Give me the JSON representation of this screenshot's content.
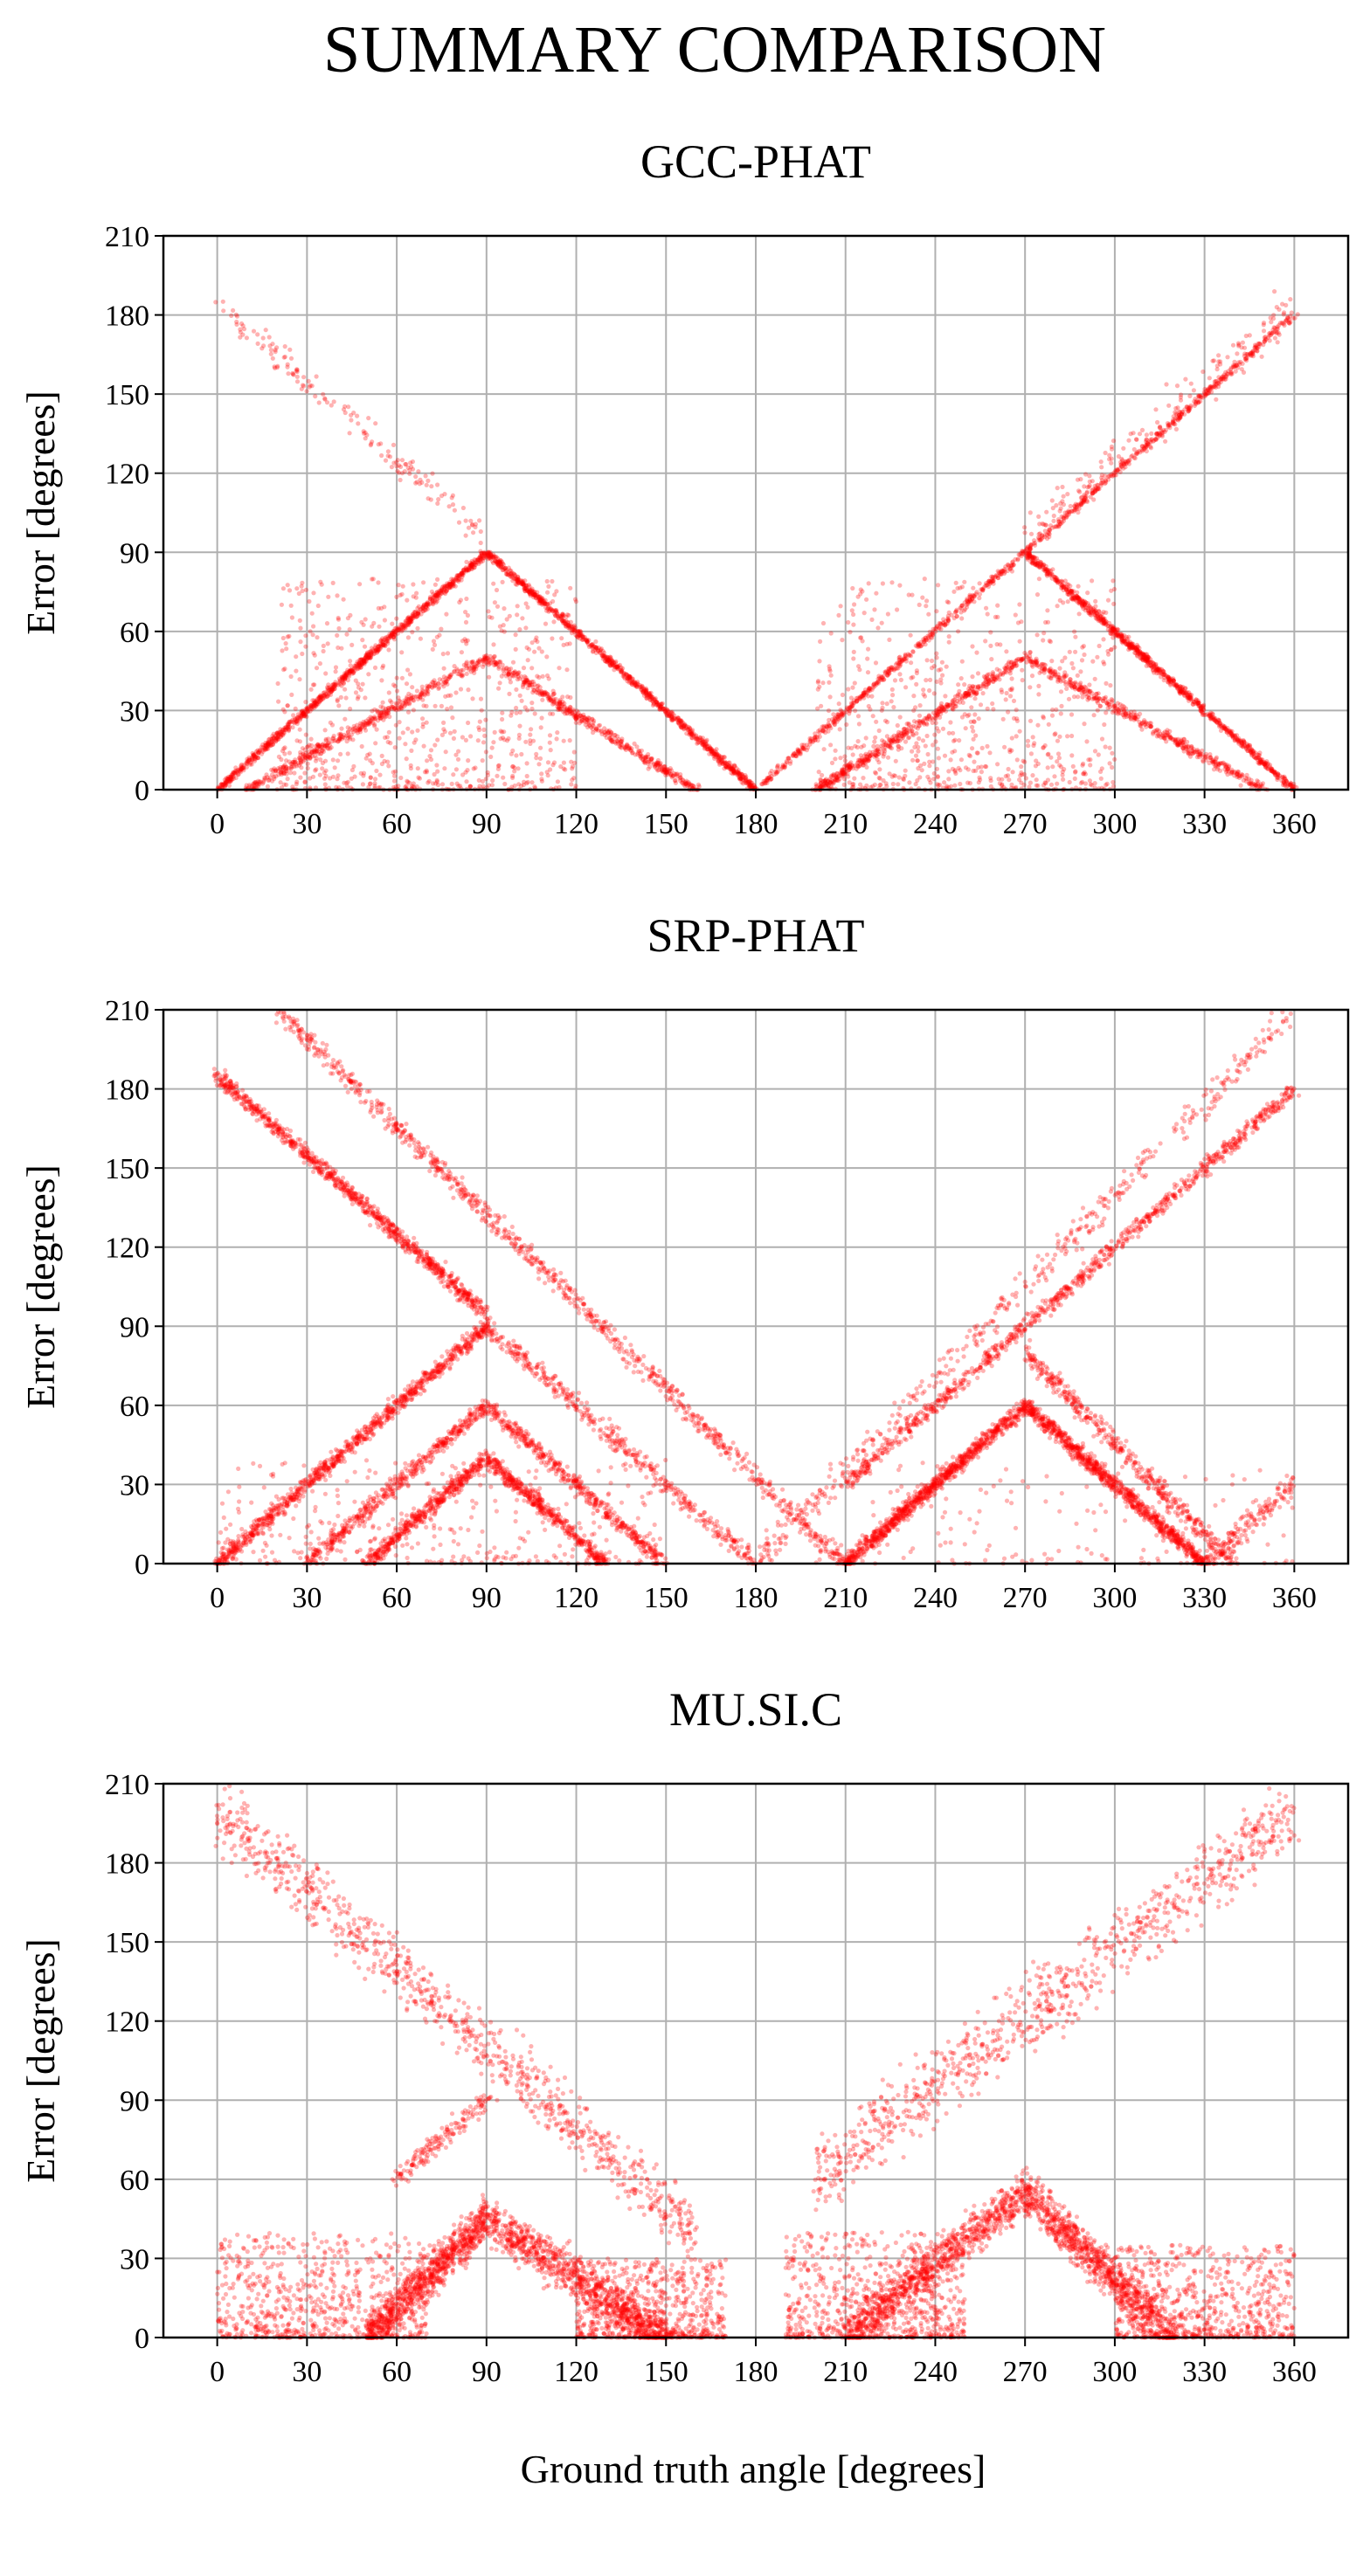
{
  "figure": {
    "title": "SUMMARY COMPARISON",
    "shared_xlabel": "Ground truth angle [degrees]"
  },
  "chart_data": [
    {
      "type": "scatter",
      "title": "GCC-PHAT",
      "xlabel": "",
      "ylabel": "Error [degrees]",
      "xlim": [
        -18,
        378
      ],
      "ylim": [
        0,
        210
      ],
      "xticks": [
        0,
        30,
        60,
        90,
        120,
        150,
        180,
        210,
        240,
        270,
        300,
        330,
        360
      ],
      "yticks": [
        0,
        30,
        60,
        90,
        120,
        150,
        180,
        210
      ],
      "grid": true,
      "marker_color": "#ff0000",
      "segments": [
        {
          "x": [
            0,
            90
          ],
          "y": [
            0,
            90
          ],
          "density": "high",
          "spread": 1
        },
        {
          "x": [
            90,
            180
          ],
          "y": [
            90,
            0
          ],
          "density": "high",
          "spread": 1
        },
        {
          "x": [
            180,
            360
          ],
          "y": [
            0,
            180
          ],
          "density": "high",
          "spread": 1
        },
        {
          "x": [
            270,
            360
          ],
          "y": [
            90,
            0
          ],
          "density": "high",
          "spread": 1
        },
        {
          "x": [
            10,
            90
          ],
          "y": [
            0,
            50
          ],
          "density": "medium",
          "spread": 2
        },
        {
          "x": [
            90,
            160
          ],
          "y": [
            50,
            0
          ],
          "density": "medium",
          "spread": 2
        },
        {
          "x": [
            200,
            270
          ],
          "y": [
            0,
            50
          ],
          "density": "medium",
          "spread": 2
        },
        {
          "x": [
            270,
            350
          ],
          "y": [
            50,
            0
          ],
          "density": "medium",
          "spread": 2
        },
        {
          "x": [
            0,
            90
          ],
          "y": [
            185,
            95
          ],
          "density": "low",
          "spread": 6
        },
        {
          "x": [
            270,
            360
          ],
          "y": [
            95,
            185
          ],
          "density": "low",
          "spread": 8
        }
      ],
      "clusters": [
        {
          "x": [
            20,
            120
          ],
          "y": [
            0,
            80
          ],
          "density": "high"
        },
        {
          "x": [
            200,
            300
          ],
          "y": [
            0,
            80
          ],
          "density": "high"
        }
      ]
    },
    {
      "type": "scatter",
      "title": "SRP-PHAT",
      "xlabel": "",
      "ylabel": "Error [degrees]",
      "xlim": [
        -18,
        378
      ],
      "ylim": [
        0,
        210
      ],
      "xticks": [
        0,
        30,
        60,
        90,
        120,
        150,
        180,
        210,
        240,
        270,
        300,
        330,
        360
      ],
      "yticks": [
        0,
        30,
        60,
        90,
        120,
        150,
        180,
        210
      ],
      "grid": true,
      "marker_color": "#ff0000",
      "segments": [
        {
          "x": [
            0,
            90
          ],
          "y": [
            185,
            95
          ],
          "density": "high",
          "spread": 3
        },
        {
          "x": [
            20,
            210
          ],
          "y": [
            210,
            0
          ],
          "density": "high",
          "spread": 4
        },
        {
          "x": [
            0,
            90
          ],
          "y": [
            0,
            90
          ],
          "density": "high",
          "spread": 3
        },
        {
          "x": [
            90,
            180
          ],
          "y": [
            90,
            0
          ],
          "density": "medium",
          "spread": 4
        },
        {
          "x": [
            210,
            360
          ],
          "y": [
            30,
            180
          ],
          "density": "high",
          "spread": 3
        },
        {
          "x": [
            180,
            360
          ],
          "y": [
            0,
            210
          ],
          "density": "medium",
          "spread": 6
        },
        {
          "x": [
            30,
            90
          ],
          "y": [
            0,
            60
          ],
          "density": "medium",
          "spread": 3
        },
        {
          "x": [
            90,
            150
          ],
          "y": [
            60,
            0
          ],
          "density": "medium",
          "spread": 3
        },
        {
          "x": [
            50,
            90
          ],
          "y": [
            0,
            40
          ],
          "density": "medium",
          "spread": 3
        },
        {
          "x": [
            90,
            130
          ],
          "y": [
            40,
            0
          ],
          "density": "medium",
          "spread": 3
        },
        {
          "x": [
            210,
            270
          ],
          "y": [
            0,
            60
          ],
          "density": "high",
          "spread": 3
        },
        {
          "x": [
            270,
            330
          ],
          "y": [
            60,
            0
          ],
          "density": "high",
          "spread": 3
        },
        {
          "x": [
            270,
            340
          ],
          "y": [
            80,
            0
          ],
          "density": "medium",
          "spread": 4
        },
        {
          "x": [
            330,
            360
          ],
          "y": [
            0,
            30
          ],
          "density": "low",
          "spread": 5
        }
      ],
      "clusters": [
        {
          "x": [
            0,
            150
          ],
          "y": [
            0,
            40
          ],
          "density": "medium"
        },
        {
          "x": [
            200,
            360
          ],
          "y": [
            0,
            40
          ],
          "density": "low"
        }
      ]
    },
    {
      "type": "scatter",
      "title": "MU.SI.C",
      "xlabel": "",
      "ylabel": "Error [degrees]",
      "xlim": [
        -18,
        378
      ],
      "ylim": [
        0,
        210
      ],
      "xticks": [
        0,
        30,
        60,
        90,
        120,
        150,
        180,
        210,
        240,
        270,
        300,
        330,
        360
      ],
      "yticks": [
        0,
        30,
        60,
        90,
        120,
        150,
        180,
        210
      ],
      "grid": true,
      "marker_color": "#ff0000",
      "segments": [
        {
          "x": [
            0,
            160
          ],
          "y": [
            200,
            40
          ],
          "density": "high",
          "spread": 12
        },
        {
          "x": [
            200,
            360
          ],
          "y": [
            60,
            200
          ],
          "density": "high",
          "spread": 14
        },
        {
          "x": [
            50,
            90
          ],
          "y": [
            0,
            45
          ],
          "density": "high",
          "spread": 8
        },
        {
          "x": [
            90,
            150
          ],
          "y": [
            45,
            0
          ],
          "density": "high",
          "spread": 8
        },
        {
          "x": [
            210,
            270
          ],
          "y": [
            0,
            55
          ],
          "density": "high",
          "spread": 8
        },
        {
          "x": [
            270,
            320
          ],
          "y": [
            55,
            0
          ],
          "density": "high",
          "spread": 8
        },
        {
          "x": [
            60,
            90
          ],
          "y": [
            60,
            90
          ],
          "density": "low",
          "spread": 4
        }
      ],
      "clusters": [
        {
          "x": [
            0,
            70
          ],
          "y": [
            0,
            40
          ],
          "density": "high"
        },
        {
          "x": [
            120,
            170
          ],
          "y": [
            0,
            30
          ],
          "density": "high"
        },
        {
          "x": [
            190,
            250
          ],
          "y": [
            0,
            40
          ],
          "density": "high"
        },
        {
          "x": [
            300,
            360
          ],
          "y": [
            0,
            35
          ],
          "density": "high"
        }
      ]
    }
  ]
}
